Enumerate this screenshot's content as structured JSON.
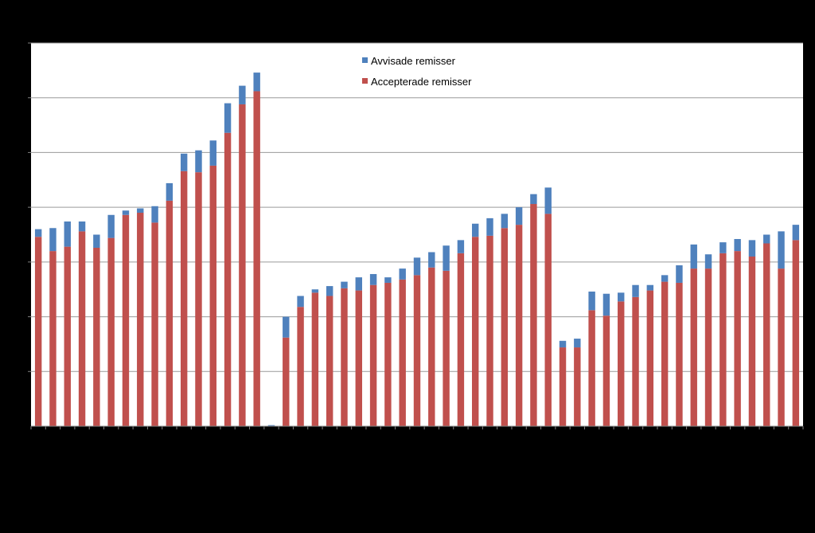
{
  "chart_data": {
    "type": "bar",
    "stacked": true,
    "title": "",
    "xlabel": "",
    "ylabel": "",
    "ylim": [
      0,
      350
    ],
    "yticks": [
      0,
      50,
      100,
      150,
      200,
      250,
      300,
      350
    ],
    "grid": true,
    "legend_position": "top-center",
    "series": [
      {
        "name": "Accepterade remisser",
        "color": "#c0504d",
        "values": [
          173,
          160,
          164,
          178,
          163,
          172,
          193,
          195,
          186,
          206,
          233,
          232,
          238,
          268,
          294,
          306,
          0,
          81,
          109,
          122,
          119,
          126,
          124,
          129,
          131,
          134,
          138,
          145,
          142,
          158,
          173,
          174,
          181,
          184,
          203,
          194,
          72,
          72,
          106,
          101,
          114,
          118,
          124,
          132,
          131,
          144,
          144,
          158,
          160,
          155,
          167,
          144,
          170
        ]
      },
      {
        "name": "Avvisade remisser",
        "color": "#4f81bd",
        "values": [
          7,
          21,
          23,
          9,
          12,
          21,
          4,
          4,
          15,
          16,
          16,
          20,
          23,
          27,
          17,
          17,
          1,
          19,
          10,
          3,
          9,
          6,
          12,
          10,
          5,
          10,
          16,
          14,
          23,
          12,
          12,
          16,
          13,
          16,
          9,
          24,
          6,
          8,
          17,
          20,
          8,
          11,
          5,
          6,
          16,
          22,
          13,
          10,
          11,
          15,
          8,
          34,
          14
        ]
      }
    ]
  },
  "legend": {
    "items": [
      {
        "label": "Avvisade remisser",
        "color": "#4f81bd"
      },
      {
        "label": "Accepterade remisser",
        "color": "#c0504d"
      }
    ]
  }
}
